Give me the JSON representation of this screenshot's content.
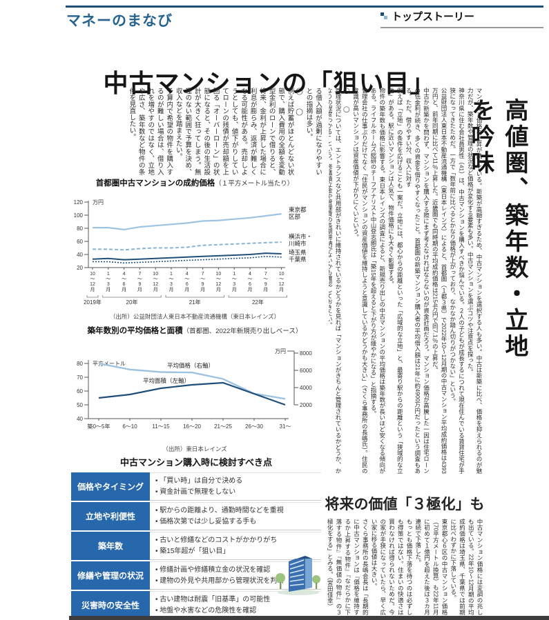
{
  "page": {
    "section_label": "マネーのまなび",
    "top_story_label": "トップストーリー",
    "main_headline": "中古マンションの「狙い目」",
    "side_headline": "高値圏、築年数・立地を吟味",
    "second_headline": "将来の価値「３極化」も",
    "byline": "（宮田佳幸）"
  },
  "colors": {
    "header_rule": "#1d4e76",
    "section_label_blue": "#27638f",
    "table_blue": "#2767ac",
    "line_light_blue": "#9dc3e0",
    "line_dashed_blue": "#85b4d8",
    "line_navy": "#1f4e79"
  },
  "body": {
    "block_a": [
      "る借入額が過剰になりやすいとの指摘は多い。",
      "◯　　◯",
      "例えば貯蓄がほとんどない状態で、購入費用の全額を変動型金利のローンで借りると、将来、金利が上昇した場合に利息が膨らみ、返済が難しくなる可能性がある。売却しようとしても、値下がりしていてローンの残債が売却額を上回る「オーバーローン」の状態になると、その後の生活設計が大きく狂ってしまう。無理のない範囲で予算を決め、収入などを踏まえたい。",
      "予算内で希望の物件を購入するのが難しい場合は、借り入れを増やすのではなく、立地や広さ、築年数など物件の条件を見直したい。"
    ],
    "lead_block": [
      "マンション価格の上昇が続いている。新築が高額すぎるため、中古マンションを選択する人も多い。中古は新築に比べ、価格を抑えられるのが魅力だが、築年数や管理の状況など価格が変化する要素も多い。中古マンションを選ぶコツや注意点を探った。",
      "神奈川県に住む会社員男性（41）は、中古マンションを購入すべきか悩んでいる。２人の子どもが成長するにつれて現在住んでいる賃貸住宅が手狭になってきたためだ。一方で「数年前に比べるとかなり価格が上がっており、なかなか踏ん切りがつかない」という。",
      "公益財団法人東日本不動産流通機構（東日本レインズ）によると、首都圏（１都３県）で2022年10〜12月期の中古マンション平均成約価格は4393万円と、前年同期に比べて11％上昇した。近畿圏でも同時期の平均成約価格は2154万円で同7.1％の上昇だ。",
      "中古か新築かを問わず、マンションを購入する際にまず考えなければならないのが資金計画だろう。マンション価格が高騰した一因は住宅ローンの低金利が続き、多くの資金を借りやすくなったこと。首都圏の新築マンション購入者の平均借入額は21年に約4900万円だったという調査もある。ただ、借りやすい分、収入に対す",
      "例えば「立地」の条件を広げることも一案だ。立地には、都心からの距離といった「広域的な立地」と、最寄り駅からの距離という「狭域的な立地」がある。駅に近いマンションは人気で、物件価格にも大きく影響する。",
      "物件の築年数も価格に影響する。東日本レインズの調査によると、新規売り出しの中古マンションの平均価格は築年数が長いほど安くなる傾向がある。ライフルホームズ総研のチーフアナリスト中山登志朗氏は「築15年を超えると下がり方が緩やかになる」と指摘する。",
      "管理会社の仕事ぶりだけでなく「住民がマンションの資産価値を維持しようと意識しているかどうかも大きい」（さくら事務所の長嶋氏）。住民の意識が高いマンションは資産価値が下がりにくいという。",
      "◯　　◯",
      "管理状況については、エントランスなど共用部がきれいに維持されているかどうかを見れば「マンションがきちんと管理されているかどうか、かなりの程度わかる」という。修繕積立金や管理費の長期滞納がないかも確認しておきたい。"
    ],
    "bottom_block": [
      "中古マンション価格には変調の兆しも出ている。22年10〜12月期の平均成約価格は埼玉県、千葉県では前期に比べわずかに下落している。",
      "東京都心６区の中古マンション価格（70平方メートル換算）も22年11月に初めて１億円を超えた後は３カ月連続で下落した。",
      "もっとも価格下落を待つのは必ずしも得策ではない。住まいの快適さは買わなければ得られないためだ。今の家が手狭になっていたら、早く広い家に移る価値は大きい。",
      "さくら事務所の長嶋会長は「長期的に中古マンションは『価格を維持するか上昇する物件』『なだらかに下落する物件』『無価値の物件』の３極化をする」とみる。（宮田佳幸）"
    ]
  },
  "chart_data": [
    {
      "type": "line",
      "title": "首都圏中古マンションの成約価格",
      "subtitle": "（１平方メートル当たり）",
      "ylabel": "万円",
      "ylim": [
        20,
        120
      ],
      "yticks": [
        20,
        40,
        60,
        80,
        100,
        120
      ],
      "x_labels": [
        [
          "10",
          "〜",
          "12",
          "月"
        ],
        [
          "1",
          "〜",
          "3",
          "月"
        ],
        [
          "4",
          "〜",
          "6",
          "月"
        ],
        [
          "7",
          "〜",
          "9",
          "月"
        ],
        [
          "10",
          "〜",
          "12",
          "月"
        ],
        [
          "1",
          "〜",
          "3",
          "月"
        ],
        [
          "4",
          "〜",
          "6",
          "月"
        ],
        [
          "7",
          "〜",
          "9",
          "月"
        ],
        [
          "10",
          "〜",
          "12",
          "月"
        ],
        [
          "1",
          "〜",
          "3",
          "月"
        ],
        [
          "4",
          "〜",
          "6",
          "月"
        ],
        [
          "7",
          "〜",
          "9",
          "月"
        ],
        [
          "10",
          "〜",
          "12",
          "月"
        ]
      ],
      "year_groups": [
        {
          "label": "2019年",
          "from": 0,
          "to": 0
        },
        {
          "label": "20年",
          "from": 1,
          "to": 4
        },
        {
          "label": "21年",
          "from": 5,
          "to": 8
        },
        {
          "label": "22年",
          "from": 9,
          "to": 12
        }
      ],
      "series": [
        {
          "name": "東京都区部",
          "label_lines": [
            "東京都",
            "区部"
          ],
          "color": "#9dc3e0",
          "dash": "",
          "width": 2.2,
          "values": [
            81,
            81,
            78,
            82,
            84,
            86,
            88,
            91,
            92,
            94,
            96,
            99,
            102
          ]
        },
        {
          "name": "横浜市・川崎市",
          "label_lines": [
            "横浜市・",
            "川崎市"
          ],
          "color": "#85b4d8",
          "dash": "5 3",
          "width": 2,
          "values": [
            48,
            48,
            47,
            49,
            50,
            50,
            51,
            54,
            55,
            56,
            57,
            58,
            59
          ]
        },
        {
          "name": "埼玉県",
          "label_lines": [
            "埼玉県"
          ],
          "color": "#1f4e79",
          "dash": "",
          "width": 2,
          "values": [
            33,
            34,
            32,
            33,
            34,
            35,
            36,
            37,
            38,
            39,
            40,
            42,
            41
          ]
        },
        {
          "name": "千葉県",
          "label_lines": [
            "千葉県"
          ],
          "color": "#1f4e79",
          "dash": "2 2",
          "width": 1.6,
          "values": [
            29,
            29,
            27,
            28,
            29,
            30,
            31,
            32,
            33,
            34,
            35,
            37,
            36
          ]
        }
      ],
      "source": "（出所）公益財団法人東日本不動産流通機構（東日本レインズ）"
    },
    {
      "type": "line",
      "title": "築年数別の平均価格と面積",
      "subtitle": "（首都圏、2022年新規売り出しベース）",
      "categories": [
        "築0〜5年",
        "6〜10",
        "11〜15",
        "16〜20",
        "21〜25",
        "26〜30",
        "31〜"
      ],
      "left_axis": {
        "label": "平方メートル",
        "lim": [
          40,
          80
        ],
        "ticks": [
          40,
          50,
          60,
          70,
          80
        ]
      },
      "right_axis": {
        "label": "万円",
        "lim": [
          2000,
          8000
        ],
        "ticks": [
          2000,
          4000,
          6000,
          8000
        ]
      },
      "series": [
        {
          "name": "平均価格（右軸）",
          "axis": "right",
          "color": "#9dc3e0",
          "width": 2.4,
          "values": [
            6800,
            6100,
            5800,
            5750,
            5000,
            3300,
            2700
          ]
        },
        {
          "name": "平均面積（左軸）",
          "axis": "left",
          "color": "#1f4e79",
          "width": 2.2,
          "values": [
            55,
            57.5,
            62,
            64.5,
            66,
            58,
            50
          ]
        }
      ],
      "source": "（出所）東日本レインズ"
    }
  ],
  "checklist": {
    "title": "中古マンション購入時に検討すべき点",
    "rows": [
      {
        "label": "価格やタイミング",
        "points": [
          "「買い時」は自分で決める",
          "資金計画で無理をしない"
        ]
      },
      {
        "label": "立地や利便性",
        "points": [
          "駅からの距離より、通勤時間などを重視",
          "価格次第では少し妥協する手も"
        ]
      },
      {
        "label": "築年数",
        "points": [
          "古いと修繕などのコストがかかりがち",
          "築15年超が「狙い目」"
        ]
      },
      {
        "label": "修繕や管理の状況",
        "points": [
          "修繕計画や修繕積立金の状況を確認",
          "建物の外見や共用部から管理状況を判断"
        ]
      },
      {
        "label": "災害時の安全性",
        "points": [
          "古い建物は耐震「旧基準」の可能性",
          "地盤や水害などの危険性を確認"
        ]
      }
    ]
  }
}
